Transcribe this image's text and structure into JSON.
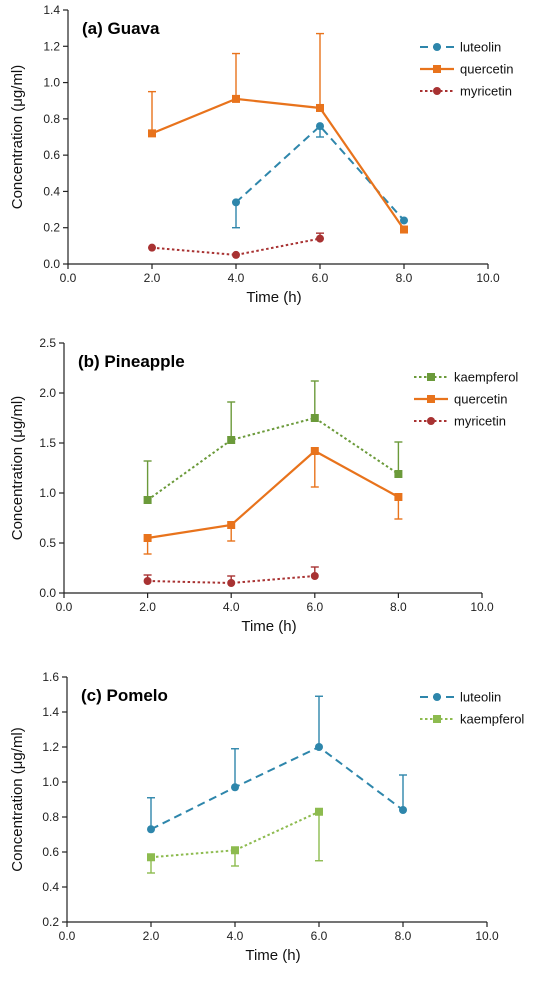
{
  "chart_data": [
    {
      "type": "line",
      "title": "(a) Guava",
      "xlabel": "Time (h)",
      "ylabel": "Concentration (μg/ml)",
      "xlim": [
        0,
        10
      ],
      "ylim": [
        0,
        1.4
      ],
      "xticks": [
        "0.0",
        "2.0",
        "4.0",
        "6.0",
        "8.0",
        "10.0"
      ],
      "yticks": [
        "0.0",
        "0.2",
        "0.4",
        "0.6",
        "0.8",
        "1.0",
        "1.2",
        "1.4"
      ],
      "legend_position": "top-right",
      "series": [
        {
          "name": "luteolin",
          "color": "#2e86ab",
          "dash": "dashed",
          "marker": "circle",
          "x": [
            4,
            6,
            8
          ],
          "y": [
            0.34,
            0.76,
            0.24
          ],
          "err_lo": [
            0.14,
            0.06,
            0.0
          ],
          "err_hi": [
            0.0,
            0.0,
            0.0
          ]
        },
        {
          "name": "quercetin",
          "color": "#e8731c",
          "dash": "solid",
          "marker": "square",
          "x": [
            2,
            4,
            6,
            8
          ],
          "y": [
            0.72,
            0.91,
            0.86,
            0.19
          ],
          "err_lo": [
            0,
            0,
            0,
            0
          ],
          "err_hi": [
            0.23,
            0.25,
            0.41,
            0.0
          ]
        },
        {
          "name": "myricetin",
          "color": "#a83232",
          "dash": "dotted",
          "marker": "circle",
          "x": [
            2,
            4,
            6
          ],
          "y": [
            0.09,
            0.05,
            0.14
          ],
          "err_lo": [
            0,
            0,
            0
          ],
          "err_hi": [
            0,
            0,
            0.03
          ]
        }
      ]
    },
    {
      "type": "line",
      "title": "(b) Pineapple",
      "xlabel": "Time (h)",
      "ylabel": "Concentration (μg/ml)",
      "xlim": [
        0,
        10
      ],
      "ylim": [
        0,
        2.5
      ],
      "xticks": [
        "0.0",
        "2.0",
        "4.0",
        "6.0",
        "8.0",
        "10.0"
      ],
      "yticks": [
        "0.0",
        "0.5",
        "1.0",
        "1.5",
        "2.0",
        "2.5"
      ],
      "legend_position": "top-right",
      "series": [
        {
          "name": "kaempferol",
          "color": "#6b9a3a",
          "dash": "dotted",
          "marker": "square",
          "x": [
            2,
            4,
            6,
            8
          ],
          "y": [
            0.93,
            1.53,
            1.75,
            1.19
          ],
          "err_lo": [
            0,
            0,
            0,
            0
          ],
          "err_hi": [
            0.39,
            0.38,
            0.37,
            0.32
          ]
        },
        {
          "name": "quercetin",
          "color": "#e8731c",
          "dash": "solid",
          "marker": "square",
          "x": [
            2,
            4,
            6,
            8
          ],
          "y": [
            0.55,
            0.68,
            1.42,
            0.96
          ],
          "err_lo": [
            0.16,
            0.16,
            0.36,
            0.22
          ],
          "err_hi": [
            0,
            0,
            0,
            0
          ]
        },
        {
          "name": "myricetin",
          "color": "#a83232",
          "dash": "dotted",
          "marker": "circle",
          "x": [
            2,
            4,
            6
          ],
          "y": [
            0.12,
            0.1,
            0.17
          ],
          "err_lo": [
            0,
            0,
            0
          ],
          "err_hi": [
            0.06,
            0.07,
            0.09
          ]
        }
      ]
    },
    {
      "type": "line",
      "title": "(c) Pomelo",
      "xlabel": "Time (h)",
      "ylabel": "Concentration (μg/ml)",
      "xlim": [
        0,
        10
      ],
      "ylim": [
        0.2,
        1.6
      ],
      "xticks": [
        "0.0",
        "2.0",
        "4.0",
        "6.0",
        "8.0",
        "10.0"
      ],
      "yticks": [
        "0.2",
        "0.4",
        "0.6",
        "0.8",
        "1.0",
        "1.2",
        "1.4",
        "1.6"
      ],
      "legend_position": "top-right",
      "series": [
        {
          "name": "luteolin",
          "color": "#2e86ab",
          "dash": "dashed",
          "marker": "circle",
          "x": [
            2,
            4,
            6,
            8
          ],
          "y": [
            0.73,
            0.97,
            1.2,
            0.84
          ],
          "err_lo": [
            0,
            0,
            0,
            0
          ],
          "err_hi": [
            0.18,
            0.22,
            0.29,
            0.2
          ]
        },
        {
          "name": "kaempferol",
          "color": "#8dbb4f",
          "dash": "dotted",
          "marker": "square",
          "x": [
            2,
            4,
            6
          ],
          "y": [
            0.57,
            0.61,
            0.83
          ],
          "err_lo": [
            0.09,
            0.09,
            0.28
          ],
          "err_hi": [
            0,
            0,
            0
          ]
        }
      ]
    }
  ]
}
